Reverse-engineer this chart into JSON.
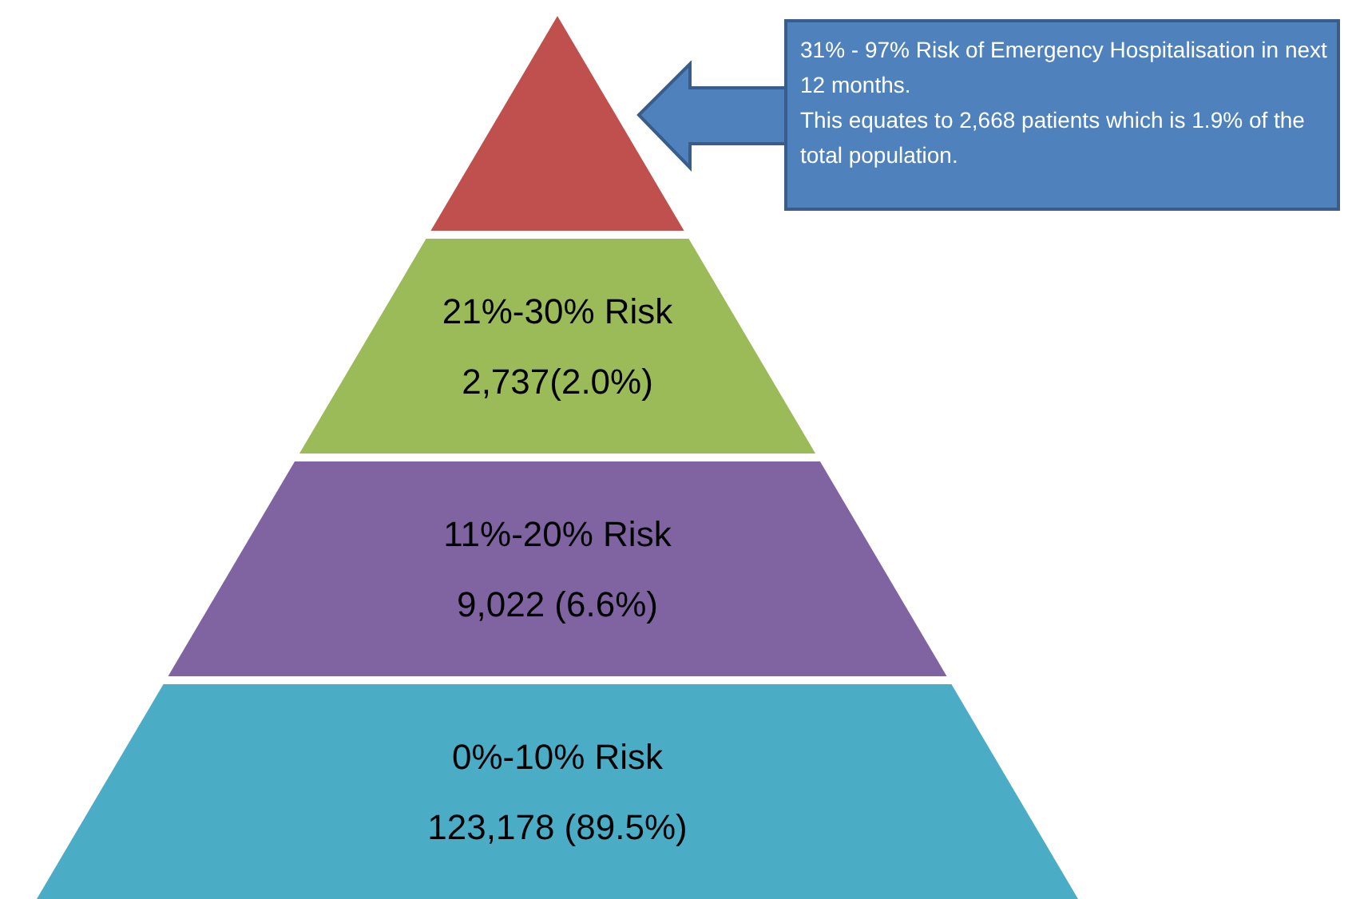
{
  "chart_data": {
    "type": "other",
    "categories": [
      null,
      "21%-30% Risk",
      "11%-20% Risk",
      "0%-10% Risk"
    ],
    "values": [
      null,
      2737,
      9022,
      123178
    ],
    "value_labels": [
      null,
      "2,737(2.0%)",
      "9,022 (6.6%)",
      "123,178 (89.5%)"
    ],
    "colors": [
      "#c0504d",
      "#9bbb59",
      "#8064a2",
      "#4bacc6"
    ],
    "annotations": [
      "31% - 97% Risk of Emergency Hospitalisation in next 12 months.",
      "This equates to 2,668 patients  which is 1.9% of the total population."
    ]
  }
}
